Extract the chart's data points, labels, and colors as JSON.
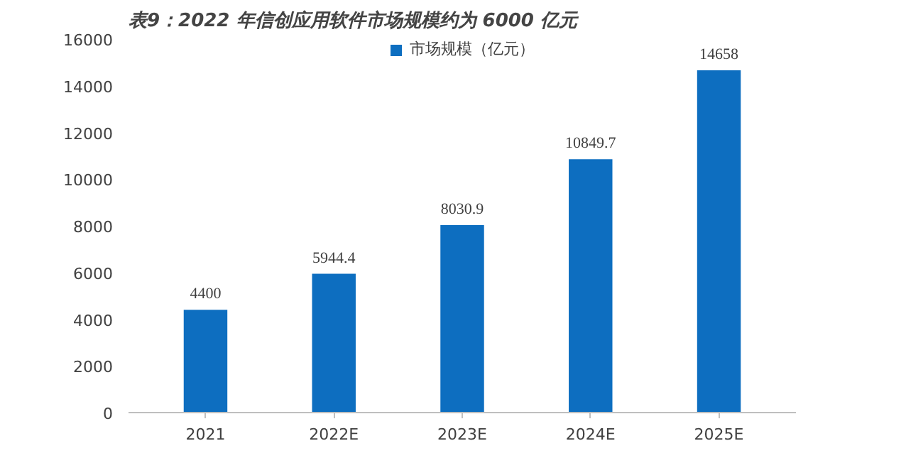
{
  "chart_data": {
    "type": "bar",
    "title": "表9：2022 年信创应用软件市场规模约为 6000 亿元",
    "categories": [
      "2021",
      "2022E",
      "2023E",
      "2024E",
      "2025E"
    ],
    "series": [
      {
        "name": "市场规模（亿元）",
        "color": "#0d6ec0",
        "values": [
          4400,
          5944.4,
          8030.9,
          10849.7,
          14658
        ]
      }
    ],
    "ylim": [
      0,
      16000
    ],
    "yticks": [
      0,
      2000,
      4000,
      6000,
      8000,
      10000,
      12000,
      14000,
      16000
    ],
    "data_labels": true,
    "legend": "top",
    "grid": false
  }
}
